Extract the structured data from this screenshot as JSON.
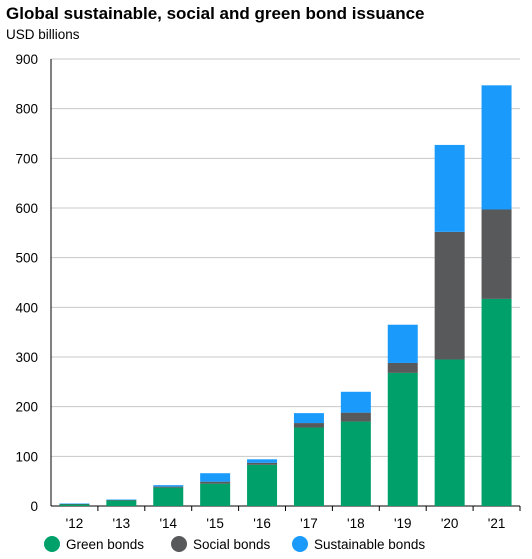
{
  "chart_data": {
    "type": "bar",
    "stacked": true,
    "title": "Global sustainable, social and green bond issuance",
    "subtitle": "USD billions",
    "xlabel": "",
    "ylabel": "",
    "ylim": [
      0,
      900
    ],
    "yticks": [
      0,
      100,
      200,
      300,
      400,
      500,
      600,
      700,
      800,
      900
    ],
    "grid": true,
    "legend_position": "bottom",
    "categories": [
      "'12",
      "'13",
      "'14",
      "'15",
      "'16",
      "'17",
      "'18",
      "'19",
      "'20",
      "'21"
    ],
    "series": [
      {
        "name": "Green bonds",
        "color": "#00a06a",
        "values": [
          3,
          11,
          37,
          45,
          83,
          158,
          170,
          268,
          295,
          417
        ]
      },
      {
        "name": "Social bonds",
        "color": "#58595b",
        "values": [
          1,
          1,
          2,
          4,
          4,
          9,
          18,
          20,
          257,
          180
        ]
      },
      {
        "name": "Sustainable bonds",
        "color": "#1a9bfc",
        "values": [
          1,
          1,
          3,
          17,
          7,
          20,
          42,
          77,
          175,
          250
        ]
      }
    ]
  }
}
